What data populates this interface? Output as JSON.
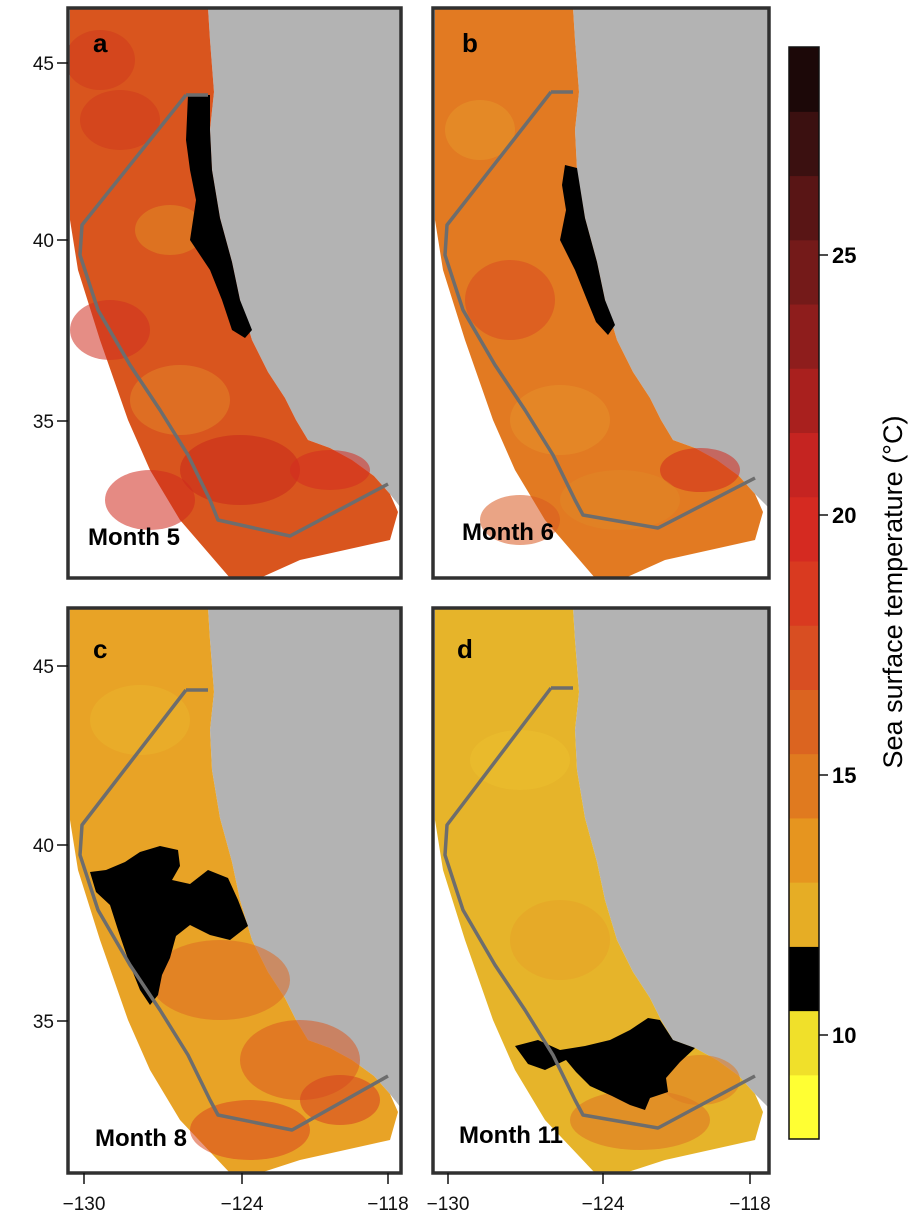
{
  "panels": [
    {
      "letter": "a",
      "month": "Month 5",
      "base": "#d9551e",
      "cold_zone": "coastal"
    },
    {
      "letter": "b",
      "month": "Month 6",
      "base": "#e27a22",
      "cold_zone": "coastal-small"
    },
    {
      "letter": "c",
      "month": "Month 8",
      "base": "#e8a326",
      "cold_zone": "central"
    },
    {
      "letter": "d",
      "month": "Month 11",
      "base": "#e6b42a",
      "cold_zone": "southern"
    }
  ],
  "axes": {
    "lon_ticks": [
      "−130",
      "−124",
      "−118"
    ],
    "lat_ticks_top": [
      "45",
      "40",
      "35"
    ],
    "lat_ticks_bottom": [
      "45",
      "40",
      "35"
    ]
  },
  "colorbar": {
    "title": "Sea surface temperature (°C)",
    "tick_labels": [
      "25",
      "20",
      "15",
      "10"
    ],
    "range": [
      8,
      29
    ],
    "colors": [
      "#ffff33",
      "#f0e02a",
      "#000000",
      "#e6ad25",
      "#e6951f",
      "#e07a1f",
      "#db6420",
      "#d84e22",
      "#d93a20",
      "#d52a21",
      "#c52421",
      "#a9201e",
      "#8e1d1c",
      "#741a19",
      "#591515",
      "#3b1010",
      "#1c0808"
    ]
  },
  "colors": {
    "land": "#b3b3b3",
    "frame": "#303030",
    "boundary": "#6d6d6d",
    "warm": "#cf2a1e",
    "cold": "#000000"
  }
}
